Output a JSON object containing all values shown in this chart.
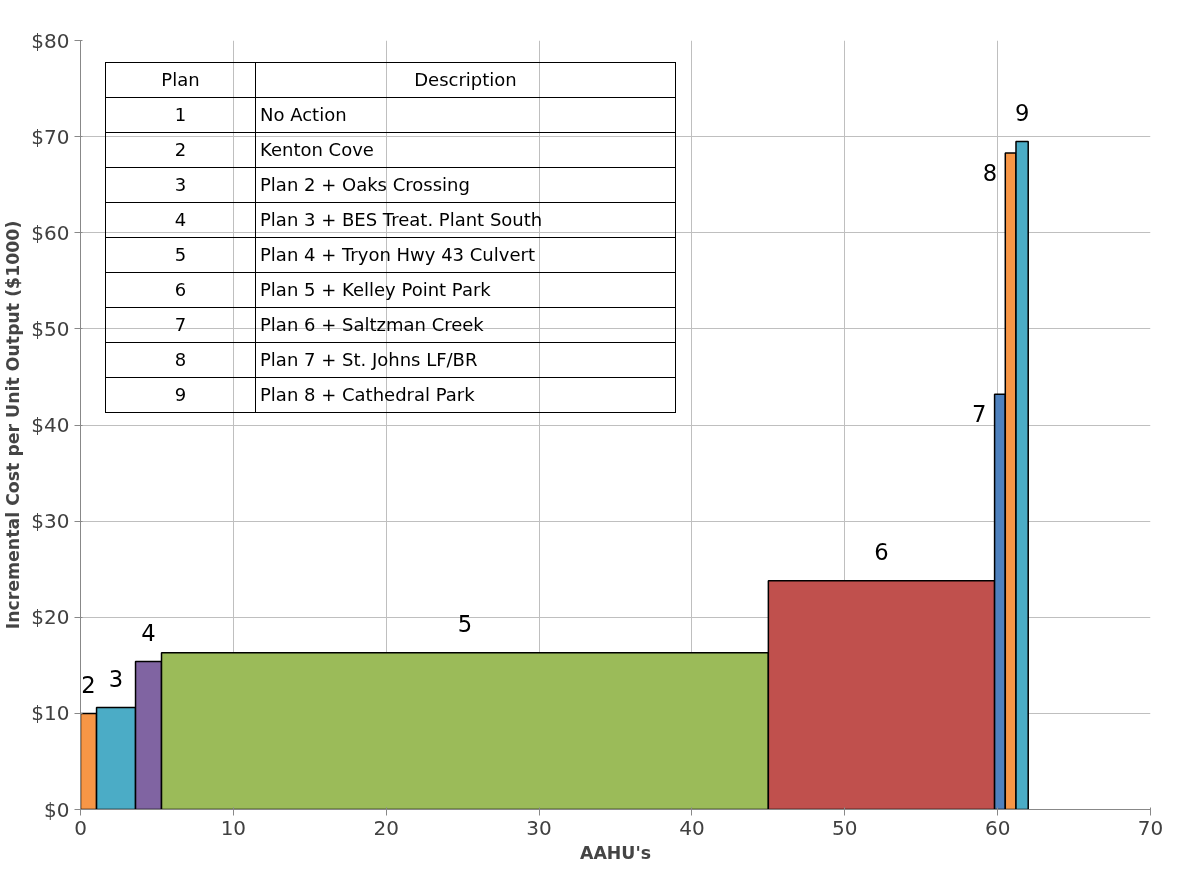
{
  "chart_data": {
    "type": "histogram",
    "xlabel": "AAHU's",
    "ylabel": "Incremental Cost per Unit Output ($1000)",
    "bins": [
      0,
      1.05,
      3.6,
      5.3,
      45.0,
      59.8,
      60.5,
      61.2,
      62.0
    ],
    "values": [
      10.0,
      10.6,
      15.4,
      16.3,
      23.8,
      43.2,
      68.3,
      69.5
    ],
    "colors": [
      "#f79646",
      "#4bacc6",
      "#8064a2",
      "#9bbb59",
      "#c0504d",
      "#4f81bd",
      "#f79646",
      "#4bacc6"
    ],
    "xlim": [
      0,
      70
    ],
    "xticks": [
      0,
      10,
      20,
      30,
      40,
      50,
      60,
      70
    ],
    "ylim": [
      0,
      80
    ],
    "yticks": [
      {
        "value": 0,
        "label": "$0"
      },
      {
        "value": 10,
        "label": "$10"
      },
      {
        "value": 20,
        "label": "$20"
      },
      {
        "value": 30,
        "label": "$30"
      },
      {
        "value": 40,
        "label": "$40"
      },
      {
        "value": 50,
        "label": "$50"
      },
      {
        "value": 60,
        "label": "$60"
      },
      {
        "value": 70,
        "label": "$70"
      },
      {
        "value": 80,
        "label": "$80"
      }
    ],
    "grid": true,
    "annotations": [
      "2",
      "3",
      "4",
      "5",
      "6",
      "7",
      "8",
      "9",
      "Plan",
      "Description",
      "1",
      "No Action",
      "2",
      "Kenton Cove",
      "3",
      "Plan 2 + Oaks Crossing",
      "4",
      "Plan 3 + BES Treat. Plant South",
      "5",
      "Plan 4 + Tryon Hwy 43 Culvert",
      "6",
      "Plan 5 + Kelley Point Park",
      "7",
      "Plan 6 + Saltzman Creek",
      "8",
      "Plan 7 + St. Johns LF/BR",
      "9",
      "Plan 8 + Cathedral Park"
    ]
  }
}
